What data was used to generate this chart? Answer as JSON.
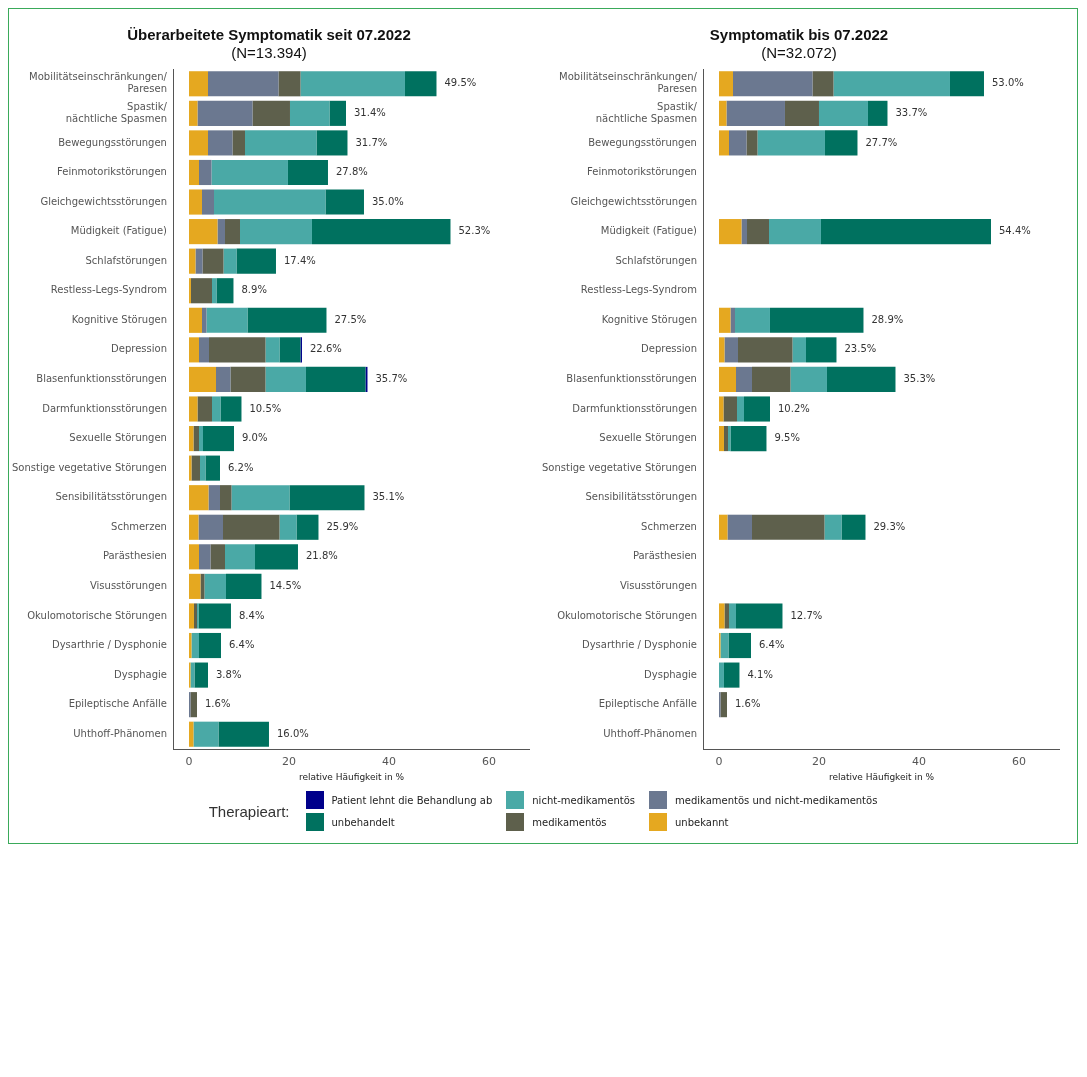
{
  "chart_data": [
    {
      "type": "bar",
      "orientation": "horizontal",
      "stacked": true,
      "title": "Überarbeitete Symptomatik seit 07.2022",
      "subtitle": "(N=13.394)",
      "xlabel": "relative Häufigkeit in %",
      "legend": "bottom",
      "legend_title": "Therapieart:",
      "grid": false,
      "categories": [
        "Mobilitätseinschränkungen/\nParesen",
        "Spastik/\nnächtliche Spasmen",
        "Bewegungsstörungen",
        "Feinmotorikstörungen",
        "Gleichgewichtsstörungen",
        "Müdigkeit (Fatigue)",
        "Schlafstörungen",
        "Restless-Legs-Syndrom",
        "Kognitive Störugen",
        "Depression",
        "Blasenfunktionsstörungen",
        "Darmfunktionsstörungen",
        "Sexuelle Störungen",
        "Sonstige vegetative Störungen",
        "Sensibilitätsstörungen",
        "Schmerzen",
        "Parästhesien",
        "Visusstörungen",
        "Okulomotorische Störungen",
        "Dysarthrie / Dysphonie",
        "Dysphagie",
        "Epileptische Anfälle",
        "Uhthoff-Phänomen"
      ],
      "xlim": [
        -3,
        68
      ],
      "xticks": [
        0,
        20,
        40,
        60
      ],
      "series": [
        {
          "name": "unbekannt",
          "color": "#e5a820",
          "values": [
            3.8,
            1.7,
            3.8,
            2.0,
            2.6,
            5.7,
            1.3,
            0.4,
            2.6,
            2.0,
            5.4,
            1.7,
            0.9,
            0.5,
            3.9,
            1.9,
            2.0,
            2.3,
            1.0,
            0.5,
            0.3,
            null,
            0.9
          ]
        },
        {
          "name": "medikamentös und nicht-medikamentös",
          "color": "#6b7890",
          "values": [
            14.1,
            11.0,
            4.9,
            2.5,
            2.4,
            1.5,
            1.4,
            null,
            0.9,
            2.0,
            2.9,
            null,
            null,
            null,
            2.3,
            4.9,
            2.3,
            null,
            null,
            null,
            null,
            0.3,
            null
          ]
        },
        {
          "name": "medikamentös",
          "color": "#5e604c",
          "values": [
            4.4,
            7.5,
            2.5,
            null,
            null,
            3.0,
            4.2,
            4.2,
            null,
            11.3,
            7.0,
            2.9,
            1.1,
            1.7,
            2.3,
            11.3,
            2.9,
            0.8,
            0.6,
            null,
            null,
            1.3,
            null
          ]
        },
        {
          "name": "nicht-medikamentös",
          "color": "#4aa9a6",
          "values": [
            20.9,
            7.9,
            14.3,
            15.3,
            22.3,
            14.4,
            2.6,
            0.9,
            8.2,
            2.8,
            8.1,
            1.7,
            0.8,
            1.1,
            11.6,
            3.4,
            6.0,
            4.3,
            0.3,
            1.5,
            0.8,
            null,
            5.0
          ]
        },
        {
          "name": "unbehandelt",
          "color": "#00715f",
          "values": [
            6.3,
            3.3,
            6.2,
            8.0,
            7.7,
            27.7,
            7.9,
            3.4,
            15.8,
            4.2,
            11.9,
            4.2,
            6.2,
            2.9,
            15.0,
            4.4,
            8.6,
            7.1,
            6.5,
            4.4,
            2.7,
            null,
            10.1
          ]
        },
        {
          "name": "Patient lehnt die Behandlung ab",
          "color": "#00008b",
          "values": [
            null,
            null,
            null,
            null,
            null,
            null,
            null,
            null,
            null,
            0.3,
            0.4,
            null,
            null,
            null,
            null,
            null,
            null,
            null,
            null,
            null,
            null,
            null,
            null
          ]
        }
      ],
      "totals": [
        "49.5%",
        "31.4%",
        "31.7%",
        "27.8%",
        "35.0%",
        "52.3%",
        "17.4%",
        "8.9%",
        "27.5%",
        "22.6%",
        "35.7%",
        "10.5%",
        "9.0%",
        "6.2%",
        "35.1%",
        "25.9%",
        "21.8%",
        "14.5%",
        "8.4%",
        "6.4%",
        "3.8%",
        "1.6%",
        "16.0%"
      ]
    },
    {
      "type": "bar",
      "orientation": "horizontal",
      "stacked": true,
      "title": "Symptomatik bis 07.2022",
      "subtitle": "(N=32.072)",
      "xlabel": "relative Häufigkeit in %",
      "grid": false,
      "categories": [
        "Mobilitätseinschränkungen/\nParesen",
        "Spastik/\nnächtliche Spasmen",
        "Bewegungsstörungen",
        "Feinmotorikstörungen",
        "Gleichgewichtsstörungen",
        "Müdigkeit (Fatigue)",
        "Schlafstörungen",
        "Restless-Legs-Syndrom",
        "Kognitive Störugen",
        "Depression",
        "Blasenfunktionsstörungen",
        "Darmfunktionsstörungen",
        "Sexuelle Störungen",
        "Sonstige vegetative Störungen",
        "Sensibilitätsstörungen",
        "Schmerzen",
        "Parästhesien",
        "Visusstörungen",
        "Okulomotorische Störungen",
        "Dysarthrie / Dysphonie",
        "Dysphagie",
        "Epileptische Anfälle",
        "Uhthoff-Phänomen"
      ],
      "xlim": [
        -3,
        68
      ],
      "xticks": [
        0,
        20,
        40,
        60
      ],
      "series": [
        {
          "color": "#e5a820",
          "values": [
            2.8,
            1.5,
            2.0,
            null,
            null,
            4.5,
            null,
            null,
            2.3,
            1.1,
            3.4,
            0.9,
            1.0,
            null,
            null,
            1.7,
            null,
            null,
            1.1,
            0.3,
            null,
            null,
            null
          ]
        },
        {
          "color": "#6b7890",
          "values": [
            15.9,
            11.7,
            3.5,
            null,
            null,
            1.1,
            null,
            null,
            0.9,
            2.7,
            3.2,
            null,
            null,
            null,
            null,
            4.9,
            null,
            null,
            null,
            null,
            null,
            0.3,
            null
          ]
        },
        {
          "color": "#5e604c",
          "values": [
            4.2,
            6.8,
            2.2,
            null,
            null,
            4.4,
            null,
            null,
            null,
            10.9,
            7.7,
            2.7,
            0.8,
            null,
            null,
            14.5,
            null,
            null,
            0.9,
            null,
            null,
            1.3,
            null
          ]
        },
        {
          "color": "#4aa9a6",
          "values": [
            23.3,
            9.8,
            13.5,
            null,
            null,
            10.4,
            null,
            null,
            7.0,
            2.7,
            7.3,
            1.4,
            0.5,
            null,
            null,
            3.4,
            null,
            null,
            1.4,
            1.6,
            1.0,
            null,
            null
          ]
        },
        {
          "color": "#00715f",
          "values": [
            6.8,
            3.9,
            6.5,
            null,
            null,
            34.0,
            null,
            null,
            18.7,
            6.1,
            13.7,
            5.2,
            7.2,
            null,
            null,
            4.8,
            null,
            null,
            9.3,
            4.5,
            3.1,
            null,
            null
          ]
        }
      ],
      "totals": [
        "53.0%",
        "33.7%",
        "27.7%",
        null,
        null,
        "54.4%",
        null,
        null,
        "28.9%",
        "23.5%",
        "35.3%",
        "10.2%",
        "9.5%",
        null,
        null,
        "29.3%",
        null,
        null,
        "12.7%",
        "6.4%",
        "4.1%",
        "1.6%",
        null
      ]
    }
  ]
}
